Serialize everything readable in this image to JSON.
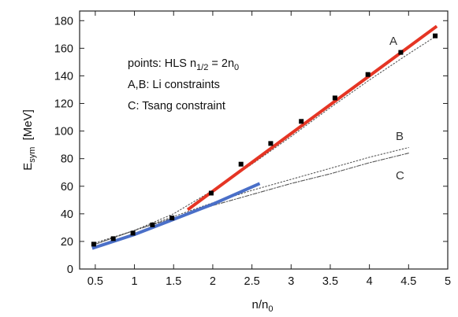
{
  "chart_data": {
    "type": "line",
    "ylabel": {
      "main": "E",
      "sub": "sym",
      "unit": "[MeV]"
    },
    "xlabel": {
      "main": "n/n",
      "sub": "0"
    },
    "xlim": [
      0.3,
      5.0
    ],
    "ylim": [
      0,
      187
    ],
    "x_ticks": [
      "0.5",
      "1",
      "1.5",
      "2",
      "2.5",
      "3",
      "3.5",
      "4",
      "4.5",
      "5"
    ],
    "x_tick_values": [
      0.5,
      1,
      1.5,
      2,
      2.5,
      3,
      3.5,
      4,
      4.5,
      5
    ],
    "y_ticks": [
      "0",
      "20",
      "40",
      "60",
      "80",
      "100",
      "120",
      "140",
      "160",
      "180"
    ],
    "y_tick_values": [
      0,
      20,
      40,
      60,
      80,
      100,
      120,
      140,
      160,
      180
    ],
    "grid": false,
    "legend_lines": [
      {
        "pre": "points: HLS n",
        "sub": "1/2",
        "post": " = 2n",
        "sub2": "0"
      },
      {
        "pre": "A,B: Li constraints"
      },
      {
        "pre": "C: Tsang constraint"
      }
    ],
    "legend_placement": "top-left",
    "points": {
      "marker": "square",
      "color": "#000000",
      "x": [
        0.48,
        0.73,
        0.98,
        1.23,
        1.48,
        1.98,
        2.36,
        2.74,
        3.13,
        3.56,
        3.98,
        4.4,
        4.84
      ],
      "y": [
        18,
        22,
        26,
        32,
        37,
        55,
        76,
        91,
        107,
        124,
        141,
        157,
        169
      ]
    },
    "curves": [
      {
        "label": "A",
        "style": "dotted",
        "color": "#555555",
        "x": [
          0.5,
          1.0,
          1.5,
          2.0,
          2.5,
          3.0,
          3.5,
          4.0,
          4.5,
          4.83
        ],
        "y": [
          19,
          28,
          40,
          57,
          76,
          96,
          117,
          137,
          156,
          168
        ]
      },
      {
        "label": "B",
        "style": "dotted",
        "color": "#555555",
        "x": [
          0.5,
          1.0,
          1.5,
          2.0,
          2.5,
          3.0,
          3.5,
          4.0,
          4.5
        ],
        "y": [
          18,
          28,
          38,
          48,
          57,
          65,
          73,
          81,
          88
        ]
      },
      {
        "label": "C",
        "style": "dashdot",
        "color": "#555555",
        "x": [
          0.5,
          1.0,
          1.5,
          2.0,
          2.5,
          3.0,
          3.5,
          4.0,
          4.5
        ],
        "y": [
          18,
          28,
          37,
          46,
          54,
          62,
          69,
          77,
          84
        ]
      },
      {
        "label": "",
        "style": "solid",
        "color": "#e53524",
        "x": [
          1.68,
          4.86
        ],
        "y": [
          43,
          176
        ]
      },
      {
        "label": "",
        "style": "solid",
        "color": "#4a6fc8",
        "x": [
          0.46,
          1.0,
          1.5,
          2.0,
          2.6
        ],
        "y": [
          15,
          25,
          36,
          47,
          62
        ]
      }
    ]
  }
}
